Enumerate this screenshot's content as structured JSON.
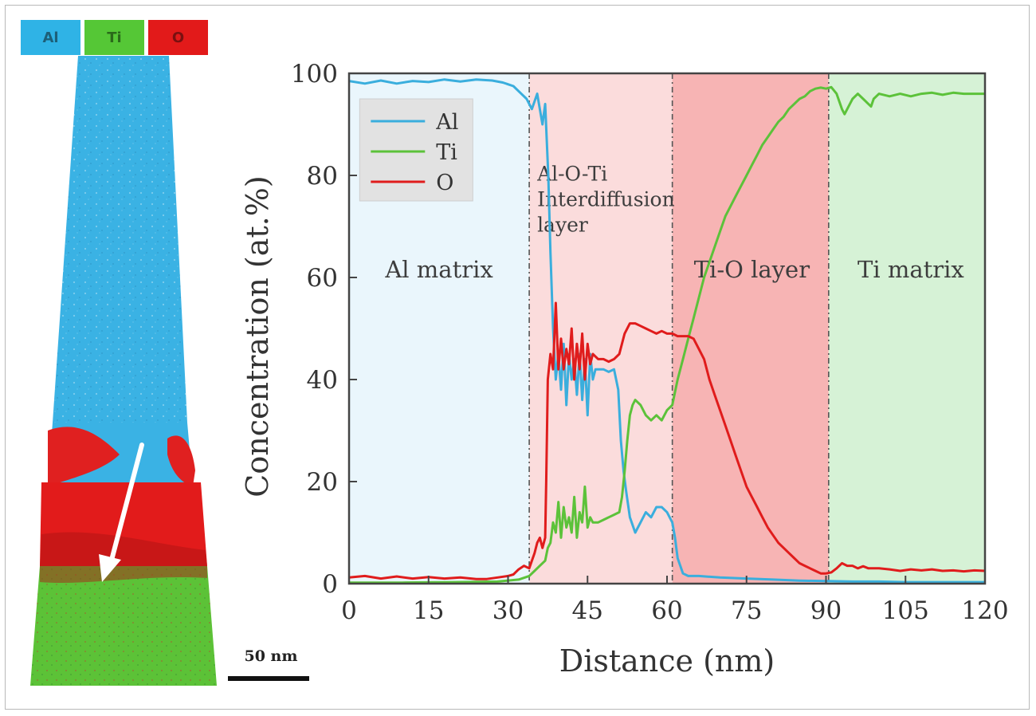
{
  "colors": {
    "al": "#3aaedd",
    "ti": "#5cc23a",
    "o": "#e01c1c"
  },
  "tip": {
    "chips": [
      {
        "label": "Al",
        "color": "#2fb3e6",
        "text_color": "#1d5f78"
      },
      {
        "label": "Ti",
        "color": "#55c736",
        "text_color": "#2a6a1a"
      },
      {
        "label": "O",
        "color": "#e21a1a",
        "text_color": "#7a1010"
      }
    ],
    "scale_label": "50 nm"
  },
  "chart_data": {
    "type": "line",
    "xlabel": "Distance (nm)",
    "ylabel": "Concentration (at.%)",
    "xlim": [
      0,
      120
    ],
    "ylim": [
      0,
      100
    ],
    "xticks": [
      0,
      15,
      30,
      45,
      60,
      75,
      90,
      105,
      120
    ],
    "yticks": [
      0,
      20,
      40,
      60,
      80,
      100
    ],
    "grid": false,
    "legend": {
      "placement": "top-left",
      "entries": [
        "Al",
        "Ti",
        "O"
      ]
    },
    "regions": [
      {
        "label": "Al matrix",
        "x_start": 0,
        "x_end": 34,
        "color": "#eaf6fc",
        "label_x": 17,
        "label_y": 60
      },
      {
        "label": "Al-O-Ti Interdiffusion layer",
        "lines": [
          "Al-O-Ti",
          "Interdiffusion",
          "layer"
        ],
        "x_start": 34,
        "x_end": 61,
        "color": "#fbdcdc",
        "label_x": 35.5,
        "label_y": 79,
        "anchor": "start"
      },
      {
        "label": "Ti-O layer",
        "x_start": 61,
        "x_end": 90.5,
        "color": "#f7b4b4",
        "label_x": 76,
        "label_y": 60
      },
      {
        "label": "Ti matrix",
        "x_start": 90.5,
        "x_end": 120,
        "color": "#d6f2d6",
        "label_x": 106,
        "label_y": 60
      }
    ],
    "boundaries": [
      34,
      61,
      90.5
    ],
    "series": [
      {
        "name": "Al",
        "color": "#3aaedd",
        "points": [
          [
            0,
            98.5
          ],
          [
            3,
            98
          ],
          [
            6,
            98.6
          ],
          [
            9,
            98
          ],
          [
            12,
            98.5
          ],
          [
            15,
            98.3
          ],
          [
            18,
            98.8
          ],
          [
            21,
            98.4
          ],
          [
            24,
            98.8
          ],
          [
            27,
            98.6
          ],
          [
            29,
            98.2
          ],
          [
            31,
            97.5
          ],
          [
            32.5,
            96
          ],
          [
            33.5,
            95
          ],
          [
            34.5,
            93
          ],
          [
            35.5,
            96
          ],
          [
            36.5,
            90
          ],
          [
            37,
            94
          ],
          [
            37.6,
            80
          ],
          [
            38,
            65
          ],
          [
            38.5,
            50
          ],
          [
            39,
            40
          ],
          [
            39.5,
            45
          ],
          [
            40,
            38
          ],
          [
            40.5,
            47
          ],
          [
            41,
            35
          ],
          [
            41.5,
            45
          ],
          [
            42,
            40
          ],
          [
            42.5,
            44
          ],
          [
            43,
            37
          ],
          [
            43.5,
            45
          ],
          [
            44,
            36
          ],
          [
            44.5,
            44
          ],
          [
            45,
            33
          ],
          [
            45.5,
            45
          ],
          [
            46,
            40
          ],
          [
            46.5,
            42
          ],
          [
            47,
            42
          ],
          [
            48,
            42
          ],
          [
            49,
            41.5
          ],
          [
            50,
            42
          ],
          [
            50.8,
            38
          ],
          [
            51.3,
            28
          ],
          [
            51.8,
            22
          ],
          [
            52.3,
            18
          ],
          [
            53,
            13
          ],
          [
            54,
            10
          ],
          [
            55,
            12
          ],
          [
            56,
            14
          ],
          [
            57,
            13
          ],
          [
            58,
            15
          ],
          [
            59,
            15
          ],
          [
            60,
            14
          ],
          [
            61,
            12
          ],
          [
            61.5,
            9
          ],
          [
            62,
            5
          ],
          [
            63,
            2
          ],
          [
            64,
            1.5
          ],
          [
            66,
            1.5
          ],
          [
            70,
            1.2
          ],
          [
            75,
            1
          ],
          [
            80,
            0.8
          ],
          [
            85,
            0.6
          ],
          [
            90,
            0.5
          ],
          [
            95,
            0.4
          ],
          [
            100,
            0.4
          ],
          [
            105,
            0.3
          ],
          [
            110,
            0.3
          ],
          [
            115,
            0.3
          ],
          [
            120,
            0.3
          ]
        ]
      },
      {
        "name": "Ti",
        "color": "#5cc23a",
        "points": [
          [
            0,
            0.2
          ],
          [
            10,
            0.2
          ],
          [
            20,
            0.3
          ],
          [
            28,
            0.4
          ],
          [
            32,
            0.8
          ],
          [
            34,
            1.5
          ],
          [
            35,
            2.5
          ],
          [
            36,
            3.5
          ],
          [
            37,
            4.5
          ],
          [
            37.5,
            7
          ],
          [
            38,
            8
          ],
          [
            38.5,
            12
          ],
          [
            39,
            10
          ],
          [
            39.5,
            16
          ],
          [
            40,
            9
          ],
          [
            40.5,
            15
          ],
          [
            41,
            11
          ],
          [
            41.5,
            13
          ],
          [
            42,
            10
          ],
          [
            42.5,
            17
          ],
          [
            43,
            9
          ],
          [
            43.5,
            14
          ],
          [
            44,
            12
          ],
          [
            44.5,
            19
          ],
          [
            45,
            11
          ],
          [
            45.5,
            13
          ],
          [
            46,
            12
          ],
          [
            47,
            12
          ],
          [
            48,
            12.5
          ],
          [
            49,
            13
          ],
          [
            50,
            13.5
          ],
          [
            51,
            14
          ],
          [
            51.5,
            17
          ],
          [
            52,
            22
          ],
          [
            52.5,
            28
          ],
          [
            53,
            33
          ],
          [
            53.5,
            35
          ],
          [
            54,
            36
          ],
          [
            55,
            35
          ],
          [
            56,
            33
          ],
          [
            57,
            32
          ],
          [
            58,
            33
          ],
          [
            59,
            32
          ],
          [
            60,
            34
          ],
          [
            61,
            35
          ],
          [
            62,
            40
          ],
          [
            63,
            44
          ],
          [
            64,
            48
          ],
          [
            65,
            52
          ],
          [
            66,
            56
          ],
          [
            67,
            60
          ],
          [
            68,
            63
          ],
          [
            69,
            66
          ],
          [
            70,
            69
          ],
          [
            71,
            72
          ],
          [
            72,
            74
          ],
          [
            73,
            76
          ],
          [
            74,
            78
          ],
          [
            75,
            80
          ],
          [
            76,
            82
          ],
          [
            77,
            84
          ],
          [
            78,
            86
          ],
          [
            79,
            87.5
          ],
          [
            80,
            89
          ],
          [
            81,
            90.5
          ],
          [
            82,
            91.5
          ],
          [
            83,
            93
          ],
          [
            84,
            94
          ],
          [
            85,
            95
          ],
          [
            86,
            95.5
          ],
          [
            87,
            96.5
          ],
          [
            88,
            97
          ],
          [
            89,
            97.2
          ],
          [
            90,
            97
          ],
          [
            91,
            97.3
          ],
          [
            92,
            96
          ],
          [
            93,
            93
          ],
          [
            93.5,
            92
          ],
          [
            94,
            93
          ],
          [
            95,
            95
          ],
          [
            96,
            96
          ],
          [
            97,
            95
          ],
          [
            98,
            94
          ],
          [
            98.5,
            93.5
          ],
          [
            99,
            95
          ],
          [
            100,
            96
          ],
          [
            102,
            95.5
          ],
          [
            104,
            96
          ],
          [
            106,
            95.5
          ],
          [
            108,
            96
          ],
          [
            110,
            96.2
          ],
          [
            112,
            95.8
          ],
          [
            114,
            96.2
          ],
          [
            116,
            96
          ],
          [
            118,
            96
          ],
          [
            120,
            96
          ]
        ]
      },
      {
        "name": "O",
        "color": "#e01c1c",
        "points": [
          [
            0,
            1.2
          ],
          [
            3,
            1.5
          ],
          [
            6,
            1
          ],
          [
            9,
            1.4
          ],
          [
            12,
            1
          ],
          [
            15,
            1.3
          ],
          [
            18,
            1
          ],
          [
            21,
            1.2
          ],
          [
            24,
            0.9
          ],
          [
            26,
            0.9
          ],
          [
            28,
            1.2
          ],
          [
            30,
            1.5
          ],
          [
            31,
            1.8
          ],
          [
            32,
            2.8
          ],
          [
            33,
            3.5
          ],
          [
            34,
            3
          ],
          [
            35,
            6
          ],
          [
            35.5,
            8
          ],
          [
            36,
            9
          ],
          [
            36.5,
            7
          ],
          [
            37,
            9
          ],
          [
            37.2,
            20
          ],
          [
            37.5,
            40
          ],
          [
            38,
            45
          ],
          [
            38.5,
            42
          ],
          [
            39,
            55
          ],
          [
            39.5,
            42
          ],
          [
            40,
            48
          ],
          [
            40.5,
            42
          ],
          [
            41,
            46
          ],
          [
            41.5,
            43
          ],
          [
            42,
            50
          ],
          [
            42.5,
            40
          ],
          [
            43,
            47
          ],
          [
            43.5,
            42
          ],
          [
            44,
            49
          ],
          [
            44.5,
            40
          ],
          [
            45,
            47
          ],
          [
            45.5,
            43
          ],
          [
            46,
            45
          ],
          [
            47,
            44
          ],
          [
            48,
            44
          ],
          [
            49,
            43.5
          ],
          [
            50,
            44
          ],
          [
            51,
            45
          ],
          [
            52,
            49
          ],
          [
            53,
            51
          ],
          [
            54,
            51
          ],
          [
            55,
            50.5
          ],
          [
            56,
            50
          ],
          [
            57,
            49.5
          ],
          [
            58,
            49
          ],
          [
            59,
            49.5
          ],
          [
            60,
            49
          ],
          [
            61,
            49
          ],
          [
            62,
            48.5
          ],
          [
            63,
            48.5
          ],
          [
            64,
            48.5
          ],
          [
            65,
            48
          ],
          [
            66,
            46
          ],
          [
            67,
            44
          ],
          [
            68,
            40
          ],
          [
            69,
            37
          ],
          [
            70,
            34
          ],
          [
            71,
            31
          ],
          [
            72,
            28
          ],
          [
            73,
            25
          ],
          [
            74,
            22
          ],
          [
            75,
            19
          ],
          [
            76,
            17
          ],
          [
            77,
            15
          ],
          [
            78,
            13
          ],
          [
            79,
            11
          ],
          [
            80,
            9.5
          ],
          [
            81,
            8
          ],
          [
            82,
            7
          ],
          [
            83,
            6
          ],
          [
            84,
            5
          ],
          [
            85,
            4
          ],
          [
            86,
            3.5
          ],
          [
            87,
            3
          ],
          [
            88,
            2.5
          ],
          [
            89,
            2
          ],
          [
            90,
            2
          ],
          [
            91,
            2.2
          ],
          [
            92,
            3
          ],
          [
            93,
            4
          ],
          [
            94,
            3.5
          ],
          [
            95,
            3.5
          ],
          [
            96,
            3
          ],
          [
            97,
            3.4
          ],
          [
            98,
            3
          ],
          [
            100,
            3
          ],
          [
            102,
            2.8
          ],
          [
            104,
            2.5
          ],
          [
            106,
            2.8
          ],
          [
            108,
            2.6
          ],
          [
            110,
            2.8
          ],
          [
            112,
            2.5
          ],
          [
            114,
            2.6
          ],
          [
            116,
            2.4
          ],
          [
            118,
            2.6
          ],
          [
            120,
            2.5
          ]
        ]
      }
    ]
  }
}
